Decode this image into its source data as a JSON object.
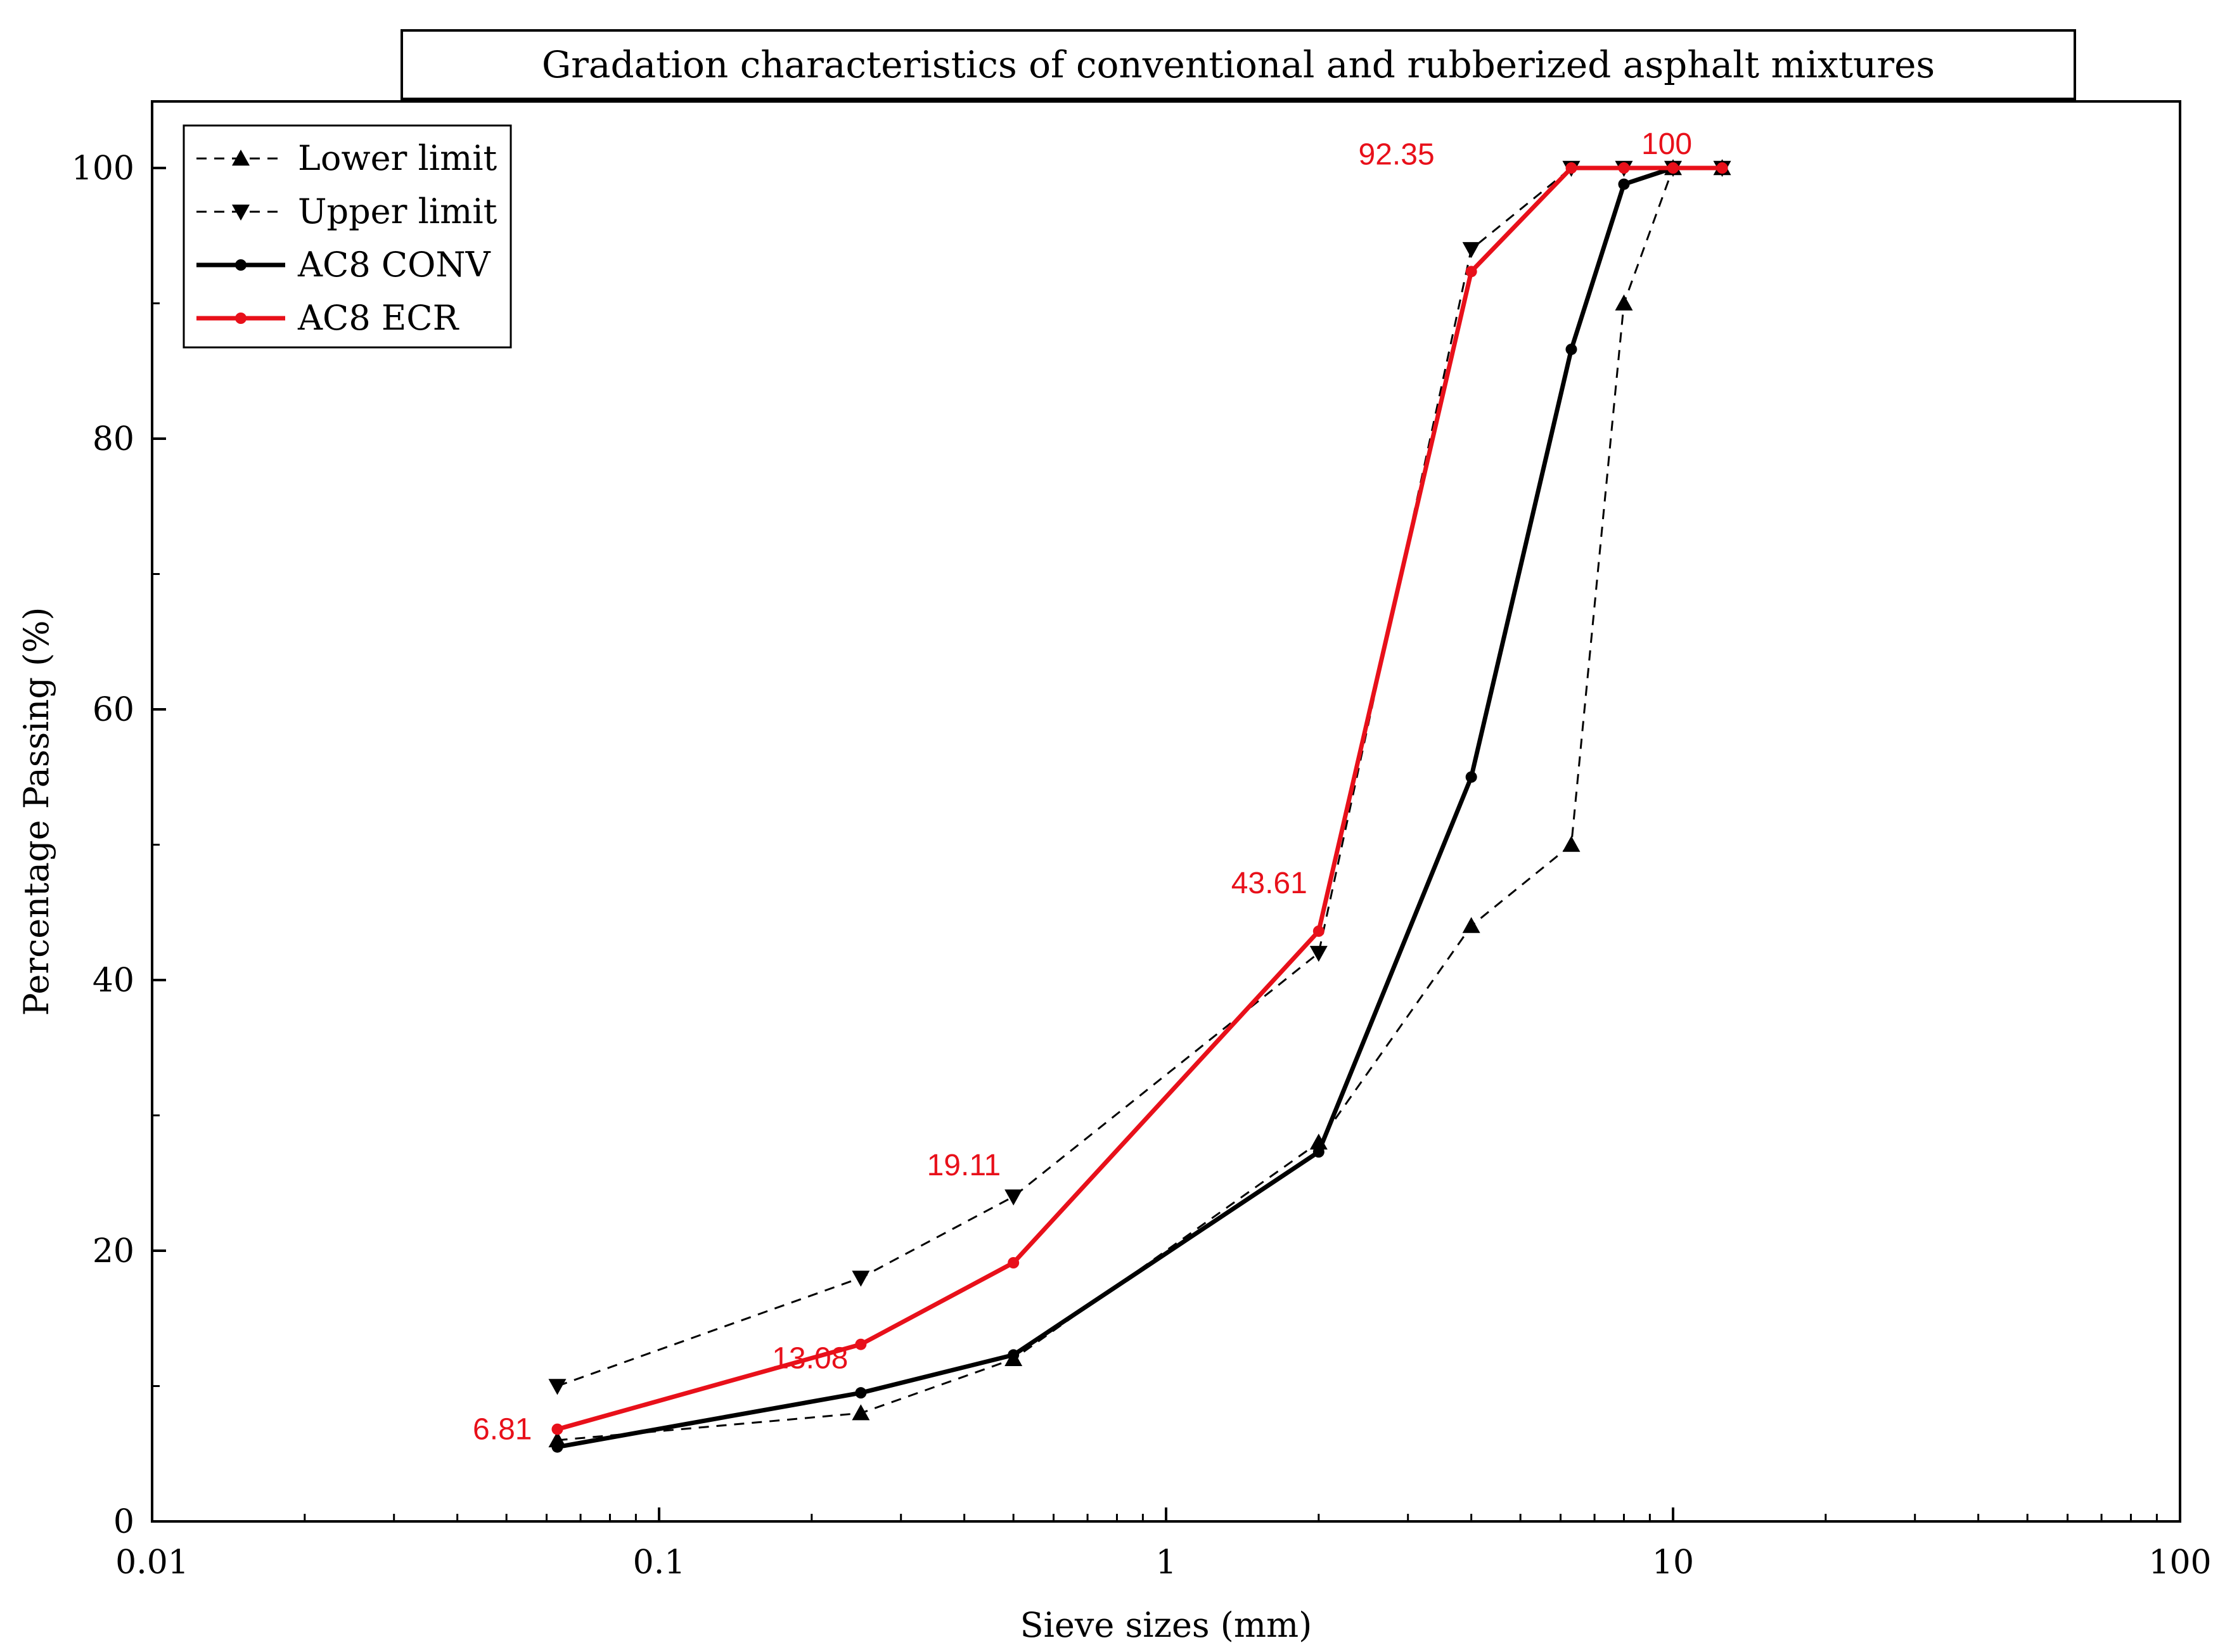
{
  "chart_data": {
    "type": "line",
    "title": "Gradation characteristics of conventional and rubberized asphalt mixtures",
    "xlabel": "Sieve sizes (mm)",
    "ylabel": "Percentage Passing (%)",
    "xscale": "log",
    "xlim": [
      0.01,
      100
    ],
    "ylim": [
      0,
      105
    ],
    "x_ticks": [
      0.01,
      0.1,
      1,
      10,
      100
    ],
    "x_tick_labels": [
      "0.01",
      "0.1",
      "1",
      "10",
      "100"
    ],
    "y_ticks": [
      0,
      20,
      40,
      60,
      80,
      100
    ],
    "y_tick_labels": [
      "0",
      "20",
      "40",
      "60",
      "80",
      "100"
    ],
    "grid": false,
    "legend_position": "top-left",
    "series": [
      {
        "name": "Lower limit",
        "color": "#000000",
        "line_style": "dashed",
        "marker": "triangle-up",
        "x": [
          0.063,
          0.25,
          0.5,
          2,
          4,
          6.3,
          8,
          10,
          12.5
        ],
        "y": [
          6,
          8,
          12,
          28,
          44,
          50,
          90,
          100,
          100
        ]
      },
      {
        "name": "Upper limit",
        "color": "#000000",
        "line_style": "dashed",
        "marker": "triangle-down",
        "x": [
          0.063,
          0.25,
          0.5,
          2,
          4,
          6.3,
          8,
          10,
          12.5
        ],
        "y": [
          10,
          18,
          24,
          42,
          94,
          100,
          100,
          100,
          100
        ]
      },
      {
        "name": "AC8 CONV",
        "color": "#000000",
        "line_style": "solid",
        "marker": "circle",
        "x": [
          0.063,
          0.25,
          0.5,
          2,
          4,
          6.3,
          8,
          10,
          12.5
        ],
        "y": [
          5.5,
          9.5,
          12.3,
          27.3,
          55,
          86.6,
          98.8,
          100,
          100
        ]
      },
      {
        "name": "AC8 ECR",
        "color": "#e8101a",
        "line_style": "solid",
        "marker": "circle",
        "x": [
          0.063,
          0.25,
          0.5,
          2,
          4,
          6.3,
          8,
          10,
          12.5
        ],
        "y": [
          6.81,
          13.08,
          19.11,
          43.61,
          92.35,
          100,
          100,
          100,
          100
        ]
      }
    ],
    "annotations": [
      {
        "text": "6.81",
        "x": 0.063,
        "y": 6.81,
        "color": "#e8101a"
      },
      {
        "text": "13.08",
        "x": 0.25,
        "y": 13.08,
        "color": "#e8101a"
      },
      {
        "text": "19.11",
        "x": 0.5,
        "y": 19.11,
        "color": "#e8101a"
      },
      {
        "text": "43.61",
        "x": 2,
        "y": 43.61,
        "color": "#e8101a"
      },
      {
        "text": "92.35",
        "x": 4,
        "y": 92.35,
        "color": "#e8101a"
      },
      {
        "text": "100",
        "x": 10,
        "y": 100,
        "color": "#e8101a"
      }
    ]
  }
}
